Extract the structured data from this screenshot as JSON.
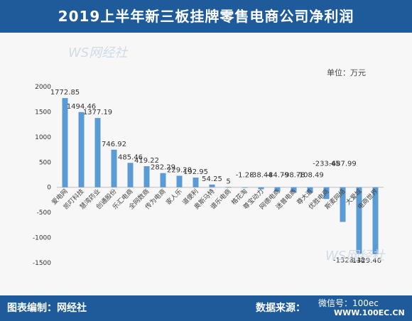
{
  "page": {
    "title": "2019上半年新三板挂牌零售电商公司净利润",
    "unit_label": "单位：万元",
    "footer_left": "图表编制：网经社",
    "footer_right": "数据来源：",
    "watermark_tl": "WS网经社",
    "watermark_br": "微信号：100ec",
    "watermark_url": "WWW.100EC.CN"
  },
  "colors": {
    "header_bg": "#1f5b9a",
    "bar": "#5b9bd5"
  },
  "chart_data": {
    "type": "bar",
    "title": "2019上半年新三板挂牌零售电商公司净利润",
    "ylabel": "单位：万元",
    "ylim": [
      -1500,
      2000
    ],
    "yticks": [
      -1500,
      -1000,
      -500,
      0,
      500,
      1000,
      1500,
      2000
    ],
    "grid": false,
    "categories": [
      "爱电网",
      "凯叮科技",
      "慧湾药业",
      "创通股份",
      "乐汇电商",
      "全网数商",
      "传为电商",
      "家人乐",
      "道便利",
      "奥斯马特",
      "谱乐电商",
      "格花淘",
      "尊宝动力",
      "网德电商",
      "迷普电商",
      "尊大道",
      "优胜电商",
      "斯麦网络",
      "大爱城",
      "电商世界"
    ],
    "values": [
      1772.85,
      1494.46,
      1377.19,
      746.92,
      485.46,
      419.22,
      282.29,
      229.28,
      192.95,
      54.25,
      5,
      -1.28,
      -38.44,
      -84.79,
      -98.78,
      -108.49,
      -233.45,
      -687.99,
      -1323.48,
      -1329.46
    ],
    "value_labels": [
      "1772.85",
      "1494.46",
      "1377.19",
      "746.92",
      "485.46",
      "419.22",
      "282.29",
      "229.28",
      "192.95",
      "54.25",
      "5",
      "-1.28",
      "-38.44",
      "-84.79",
      "-98.78",
      "-108.49",
      "-233.45",
      "-687.99",
      "-1323.48",
      "-1329.46"
    ]
  }
}
